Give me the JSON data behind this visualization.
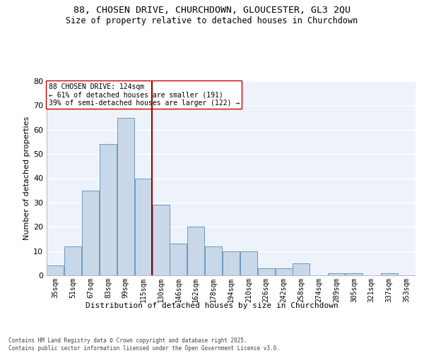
{
  "title1": "88, CHOSEN DRIVE, CHURCHDOWN, GLOUCESTER, GL3 2QU",
  "title2": "Size of property relative to detached houses in Churchdown",
  "xlabel": "Distribution of detached houses by size in Churchdown",
  "ylabel": "Number of detached properties",
  "bin_labels": [
    "35sqm",
    "51sqm",
    "67sqm",
    "83sqm",
    "99sqm",
    "115sqm",
    "130sqm",
    "146sqm",
    "162sqm",
    "178sqm",
    "194sqm",
    "210sqm",
    "226sqm",
    "242sqm",
    "258sqm",
    "274sqm",
    "289sqm",
    "305sqm",
    "321sqm",
    "337sqm",
    "353sqm"
  ],
  "bar_heights": [
    4,
    12,
    35,
    54,
    65,
    40,
    29,
    13,
    20,
    12,
    10,
    10,
    3,
    3,
    5,
    0,
    1,
    1,
    0,
    1,
    0
  ],
  "bar_color": "#c8d8e8",
  "bar_edge_color": "#5b8db8",
  "vline_x": 5.5,
  "vline_color": "#990000",
  "annotation_text": "88 CHOSEN DRIVE: 124sqm\n← 61% of detached houses are smaller (191)\n39% of semi-detached houses are larger (122) →",
  "annotation_box_color": "#ffffff",
  "annotation_box_edge": "#cc0000",
  "ylim": [
    0,
    80
  ],
  "yticks": [
    0,
    10,
    20,
    30,
    40,
    50,
    60,
    70,
    80
  ],
  "background_color": "#eef2fb",
  "footer_text": "Contains HM Land Registry data © Crown copyright and database right 2025.\nContains public sector information licensed under the Open Government Licence v3.0.",
  "title_fontsize": 9.5,
  "subtitle_fontsize": 8.5,
  "ylabel_fontsize": 8,
  "xlabel_fontsize": 8,
  "tick_fontsize": 7,
  "annotation_fontsize": 7,
  "footer_fontsize": 5.5
}
